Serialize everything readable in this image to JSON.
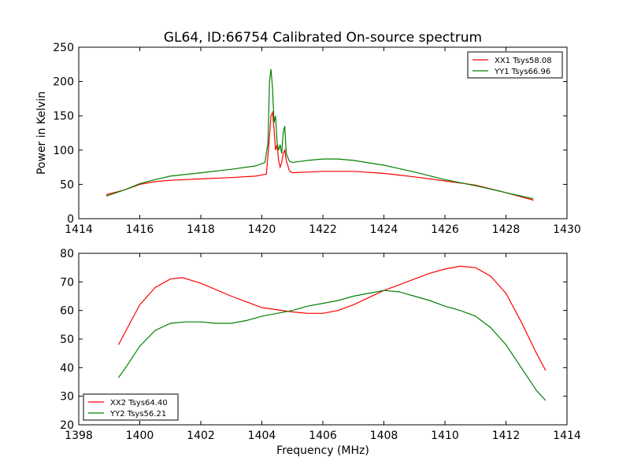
{
  "chart_data": [
    {
      "type": "line",
      "title": "GL64, ID:66754 Calibrated On-source spectrum",
      "xlabel": "",
      "ylabel": "Power in Kelvin",
      "xlim": [
        1414,
        1430
      ],
      "ylim": [
        0,
        250
      ],
      "xticks": [
        "1414",
        "1416",
        "1418",
        "1420",
        "1422",
        "1424",
        "1426",
        "1428",
        "1430"
      ],
      "yticks": [
        "0",
        "50",
        "100",
        "150",
        "200",
        "250"
      ],
      "grid": false,
      "legend_position": "top-right",
      "series": [
        {
          "name": "XX1 Tsys58.08",
          "color": "#ff0000",
          "points": [
            [
              1414.9,
              35
            ],
            [
              1415.5,
              42
            ],
            [
              1416,
              50
            ],
            [
              1416.5,
              54
            ],
            [
              1417,
              56
            ],
            [
              1418,
              58
            ],
            [
              1419,
              60
            ],
            [
              1419.8,
              62
            ],
            [
              1420.15,
              65
            ],
            [
              1420.25,
              120
            ],
            [
              1420.3,
              150
            ],
            [
              1420.35,
              155
            ],
            [
              1420.4,
              130
            ],
            [
              1420.45,
              100
            ],
            [
              1420.5,
              108
            ],
            [
              1420.55,
              85
            ],
            [
              1420.6,
              75
            ],
            [
              1420.65,
              82
            ],
            [
              1420.7,
              95
            ],
            [
              1420.75,
              100
            ],
            [
              1420.8,
              85
            ],
            [
              1420.9,
              70
            ],
            [
              1421,
              67
            ],
            [
              1421.5,
              68
            ],
            [
              1422,
              69
            ],
            [
              1423,
              69
            ],
            [
              1424,
              66
            ],
            [
              1425,
              61
            ],
            [
              1426,
              55
            ],
            [
              1427,
              49
            ],
            [
              1428,
              38
            ],
            [
              1428.9,
              27
            ]
          ]
        },
        {
          "name": "YY1 Tsys66.96",
          "color": "#008000",
          "points": [
            [
              1414.9,
              33
            ],
            [
              1415.5,
              42
            ],
            [
              1416,
              51
            ],
            [
              1416.5,
              57
            ],
            [
              1417,
              62
            ],
            [
              1418,
              67
            ],
            [
              1419,
              72
            ],
            [
              1419.8,
              77
            ],
            [
              1420.1,
              82
            ],
            [
              1420.2,
              110
            ],
            [
              1420.25,
              200
            ],
            [
              1420.3,
              218
            ],
            [
              1420.35,
              190
            ],
            [
              1420.4,
              140
            ],
            [
              1420.45,
              150
            ],
            [
              1420.5,
              110
            ],
            [
              1420.55,
              100
            ],
            [
              1420.6,
              108
            ],
            [
              1420.65,
              95
            ],
            [
              1420.7,
              125
            ],
            [
              1420.75,
              135
            ],
            [
              1420.8,
              95
            ],
            [
              1420.9,
              84
            ],
            [
              1421,
              82
            ],
            [
              1421.5,
              85
            ],
            [
              1422,
              87
            ],
            [
              1422.5,
              87
            ],
            [
              1423,
              85
            ],
            [
              1424,
              78
            ],
            [
              1425,
              68
            ],
            [
              1426,
              57
            ],
            [
              1427,
              48
            ],
            [
              1428,
              38
            ],
            [
              1428.9,
              29
            ]
          ]
        }
      ]
    },
    {
      "type": "line",
      "title": "",
      "xlabel": "Frequency (MHz)",
      "ylabel": "",
      "xlim": [
        1398,
        1414
      ],
      "ylim": [
        20,
        80
      ],
      "xticks": [
        "1398",
        "1400",
        "1402",
        "1404",
        "1406",
        "1408",
        "1410",
        "1412",
        "1414"
      ],
      "yticks": [
        "20",
        "30",
        "40",
        "50",
        "60",
        "70",
        "80"
      ],
      "grid": false,
      "legend_position": "bottom-left",
      "series": [
        {
          "name": "XX2 Tsys64.40",
          "color": "#ff0000",
          "points": [
            [
              1399.3,
              48
            ],
            [
              1399.6,
              54
            ],
            [
              1400,
              62
            ],
            [
              1400.5,
              68
            ],
            [
              1401,
              71
            ],
            [
              1401.4,
              71.5
            ],
            [
              1402,
              69.5
            ],
            [
              1403,
              65
            ],
            [
              1404,
              61
            ],
            [
              1405,
              59.5
            ],
            [
              1405.5,
              59
            ],
            [
              1406,
              59
            ],
            [
              1406.5,
              60
            ],
            [
              1407,
              62
            ],
            [
              1407.5,
              64.5
            ],
            [
              1408,
              67
            ],
            [
              1408.5,
              69
            ],
            [
              1409,
              71
            ],
            [
              1409.5,
              73
            ],
            [
              1410,
              74.5
            ],
            [
              1410.5,
              75.5
            ],
            [
              1411,
              75
            ],
            [
              1411.5,
              72
            ],
            [
              1412,
              66
            ],
            [
              1412.5,
              56
            ],
            [
              1413,
              45
            ],
            [
              1413.3,
              39
            ]
          ]
        },
        {
          "name": "YY2 Tsys56.21",
          "color": "#008000",
          "points": [
            [
              1399.3,
              36.5
            ],
            [
              1399.6,
              41
            ],
            [
              1400,
              47.5
            ],
            [
              1400.5,
              53
            ],
            [
              1401,
              55.5
            ],
            [
              1401.5,
              56
            ],
            [
              1402,
              56
            ],
            [
              1402.5,
              55.5
            ],
            [
              1403,
              55.5
            ],
            [
              1403.5,
              56.5
            ],
            [
              1404,
              58
            ],
            [
              1404.5,
              59
            ],
            [
              1405,
              60
            ],
            [
              1405.5,
              61.5
            ],
            [
              1406,
              62.5
            ],
            [
              1406.5,
              63.5
            ],
            [
              1407,
              65
            ],
            [
              1407.5,
              66
            ],
            [
              1408,
              67
            ],
            [
              1408.5,
              66.5
            ],
            [
              1409,
              65
            ],
            [
              1409.5,
              63.5
            ],
            [
              1410,
              61.5
            ],
            [
              1410.5,
              60
            ],
            [
              1411,
              58
            ],
            [
              1411.5,
              54
            ],
            [
              1412,
              48
            ],
            [
              1412.5,
              40
            ],
            [
              1413,
              32
            ],
            [
              1413.3,
              28.5
            ]
          ]
        }
      ]
    }
  ]
}
